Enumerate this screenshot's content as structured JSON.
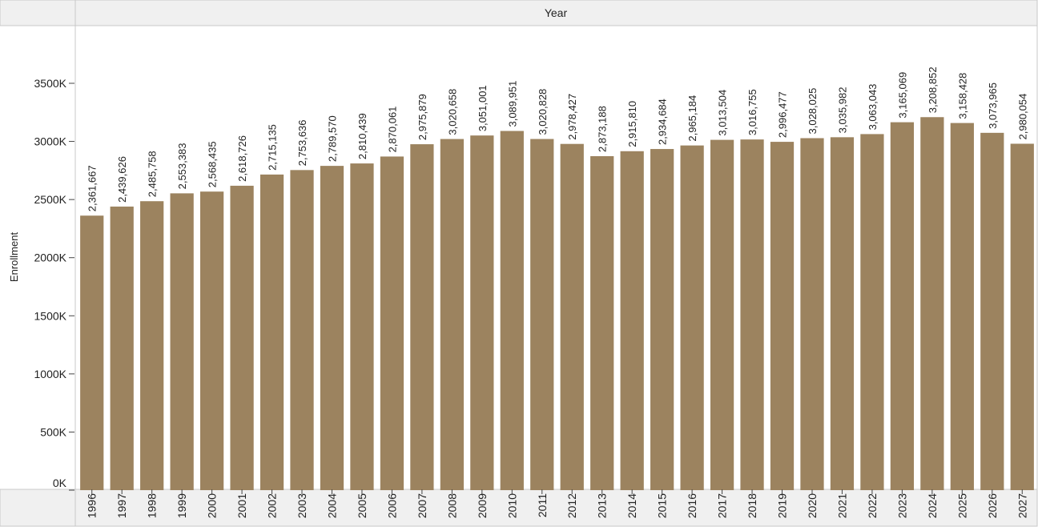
{
  "colors": {
    "bar": "#9c835f",
    "header_bg": "#f0f0f0",
    "border": "#c8c8c8"
  },
  "chart_data": {
    "type": "bar",
    "column_header": "Year",
    "ylabel": "Enrollment",
    "ylim": [
      0,
      3500000
    ],
    "y_ticks": [
      {
        "value": 0,
        "label": "0K"
      },
      {
        "value": 500000,
        "label": "500K"
      },
      {
        "value": 1000000,
        "label": "1000K"
      },
      {
        "value": 1500000,
        "label": "1500K"
      },
      {
        "value": 2000000,
        "label": "2000K"
      },
      {
        "value": 2500000,
        "label": "2500K"
      },
      {
        "value": 3000000,
        "label": "3000K"
      },
      {
        "value": 3500000,
        "label": "3500K"
      }
    ],
    "categories": [
      "1996",
      "1997",
      "1998",
      "1999",
      "2000",
      "2001",
      "2002",
      "2003",
      "2004",
      "2005",
      "2006",
      "2007",
      "2008",
      "2009",
      "2010",
      "2011",
      "2012",
      "2013",
      "2014",
      "2015",
      "2016",
      "2017",
      "2018",
      "2019",
      "2020",
      "2021",
      "2022",
      "2023",
      "2024",
      "2025",
      "2026",
      "2027"
    ],
    "values": [
      2361667,
      2439626,
      2485758,
      2553383,
      2568435,
      2618726,
      2715135,
      2753636,
      2789570,
      2810439,
      2870061,
      2975879,
      3020658,
      3051001,
      3089951,
      3020828,
      2978427,
      2873188,
      2915810,
      2934684,
      2965184,
      3013504,
      3016755,
      2996477,
      3028025,
      3035982,
      3063043,
      3165069,
      3208852,
      3158428,
      3073965,
      2980054
    ],
    "data_labels": [
      "2,361,667",
      "2,439,626",
      "2,485,758",
      "2,553,383",
      "2,568,435",
      "2,618,726",
      "2,715,135",
      "2,753,636",
      "2,789,570",
      "2,810,439",
      "2,870,061",
      "2,975,879",
      "3,020,658",
      "3,051,001",
      "3,089,951",
      "3,020,828",
      "2,978,427",
      "2,873,188",
      "2,915,810",
      "2,934,684",
      "2,965,184",
      "3,013,504",
      "3,016,755",
      "2,996,477",
      "3,028,025",
      "3,035,982",
      "3,063,043",
      "3,165,069",
      "3,208,852",
      "3,158,428",
      "3,073,965",
      "2,980,054"
    ]
  }
}
